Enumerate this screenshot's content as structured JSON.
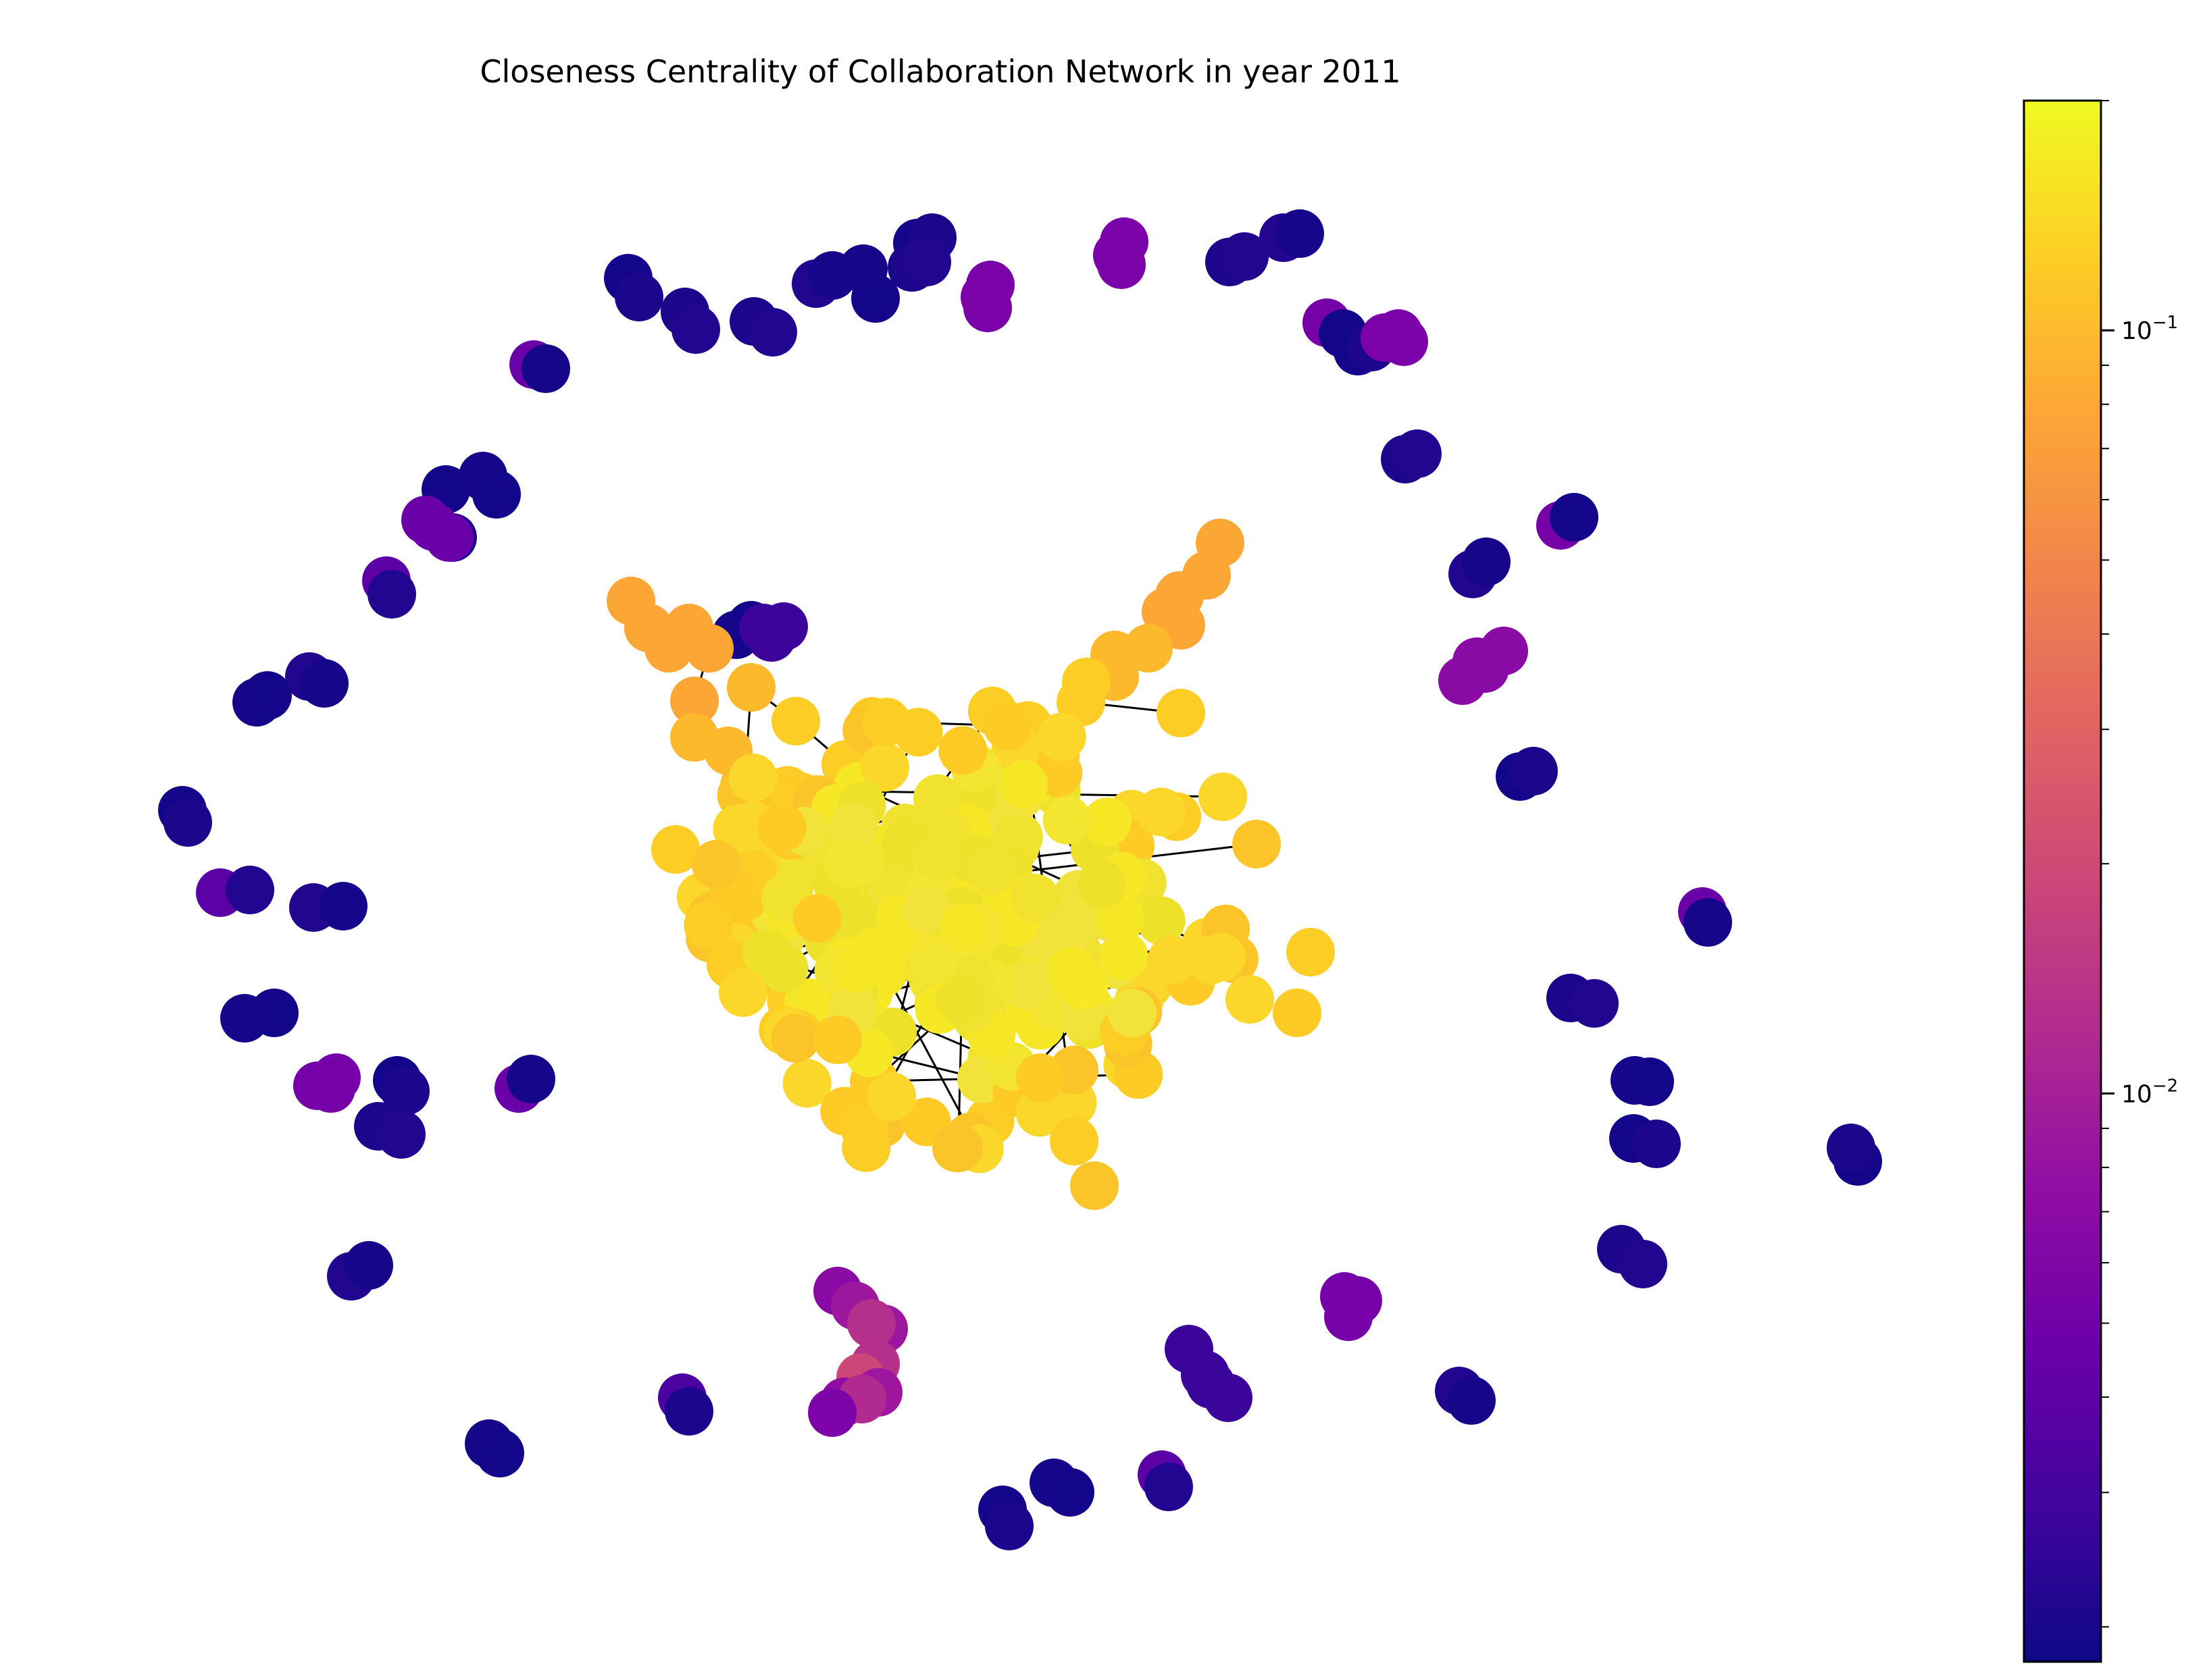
{
  "chart_data": {
    "type": "scatter",
    "title": "Closeness Centrality of Collaboration Network in year 2011",
    "colormap": "plasma",
    "colorbar": {
      "scale": "log",
      "range": [
        0.0018,
        0.2
      ],
      "ticks": [
        {
          "value": 0.1,
          "base": "10",
          "exp": "−1"
        },
        {
          "value": 0.01,
          "base": "10",
          "exp": "−2"
        }
      ]
    },
    "node_groups": [
      {
        "region": "central core",
        "closeness": 0.13,
        "color": "#f2e33b"
      },
      {
        "region": "core periphery",
        "closeness": 0.1,
        "color": "#fcce25"
      },
      {
        "region": "left arm",
        "closeness": 0.075,
        "color": "#fca636"
      },
      {
        "region": "upper right arm",
        "closeness": 0.075,
        "color": "#fca636"
      },
      {
        "region": "bottom cluster",
        "closeness": 0.006,
        "color": "#b52f8c"
      },
      {
        "region": "outer ring",
        "closeness": 0.002,
        "color": "#1b068c"
      }
    ]
  }
}
